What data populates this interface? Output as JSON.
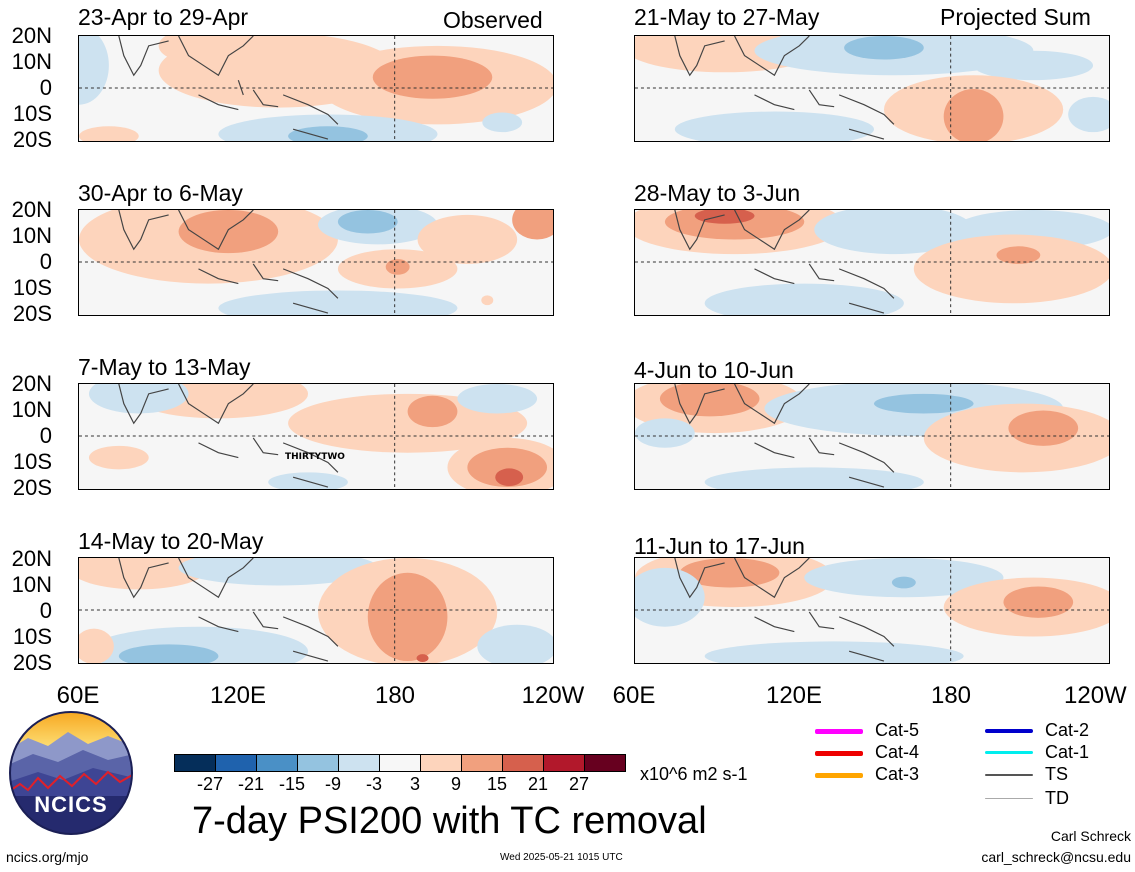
{
  "top_tags": {
    "left": "Observed",
    "right": "Projected Sum"
  },
  "panels_left": [
    {
      "title": "23-Apr to 29-Apr"
    },
    {
      "title": "30-Apr to 6-May"
    },
    {
      "title": "7-May to 13-May",
      "storm_label": "THIRTYTWO"
    },
    {
      "title": "14-May to 20-May"
    }
  ],
  "panels_right": [
    {
      "title": "21-May to 27-May"
    },
    {
      "title": "28-May to 3-Jun"
    },
    {
      "title": "4-Jun to 10-Jun"
    },
    {
      "title": "11-Jun to 17-Jun"
    }
  ],
  "lat_labels": [
    "20N",
    "10N",
    "0",
    "10S",
    "20S"
  ],
  "lon_labels": [
    "60E",
    "120E",
    "180",
    "120W"
  ],
  "colorbar": {
    "labels": [
      "-27",
      "-21",
      "-15",
      "-9",
      "-3",
      "3",
      "9",
      "15",
      "21",
      "27"
    ],
    "colors": [
      "#052e5a",
      "#1f62ad",
      "#4a90c6",
      "#94c3e0",
      "#cde2f0",
      "#f7f7f7",
      "#fdd4bc",
      "#f1a07e",
      "#d6604d",
      "#b2182b",
      "#67001f"
    ],
    "units": "x10^6 m2 s-1"
  },
  "main_title": "7-day PSI200 with TC removal",
  "logo_text": "NCICS",
  "footer": {
    "url": "ncics.org/mjo",
    "timestamp": "Wed 2025-05-21 1015 UTC",
    "author": "Carl Schreck",
    "email": "carl_schreck@ncsu.edu"
  },
  "tc_legend": [
    {
      "label": "Cat-5",
      "color": "#ff00ff"
    },
    {
      "label": "Cat-4",
      "color": "#ee0000"
    },
    {
      "label": "Cat-3",
      "color": "#ffa500"
    },
    {
      "label": "Cat-2",
      "color": "#0000cc"
    },
    {
      "label": "Cat-1",
      "color": "#00eeee"
    },
    {
      "label": "TS",
      "color": "#555555"
    },
    {
      "label": "TD",
      "color": "#aaaaaa"
    }
  ]
}
